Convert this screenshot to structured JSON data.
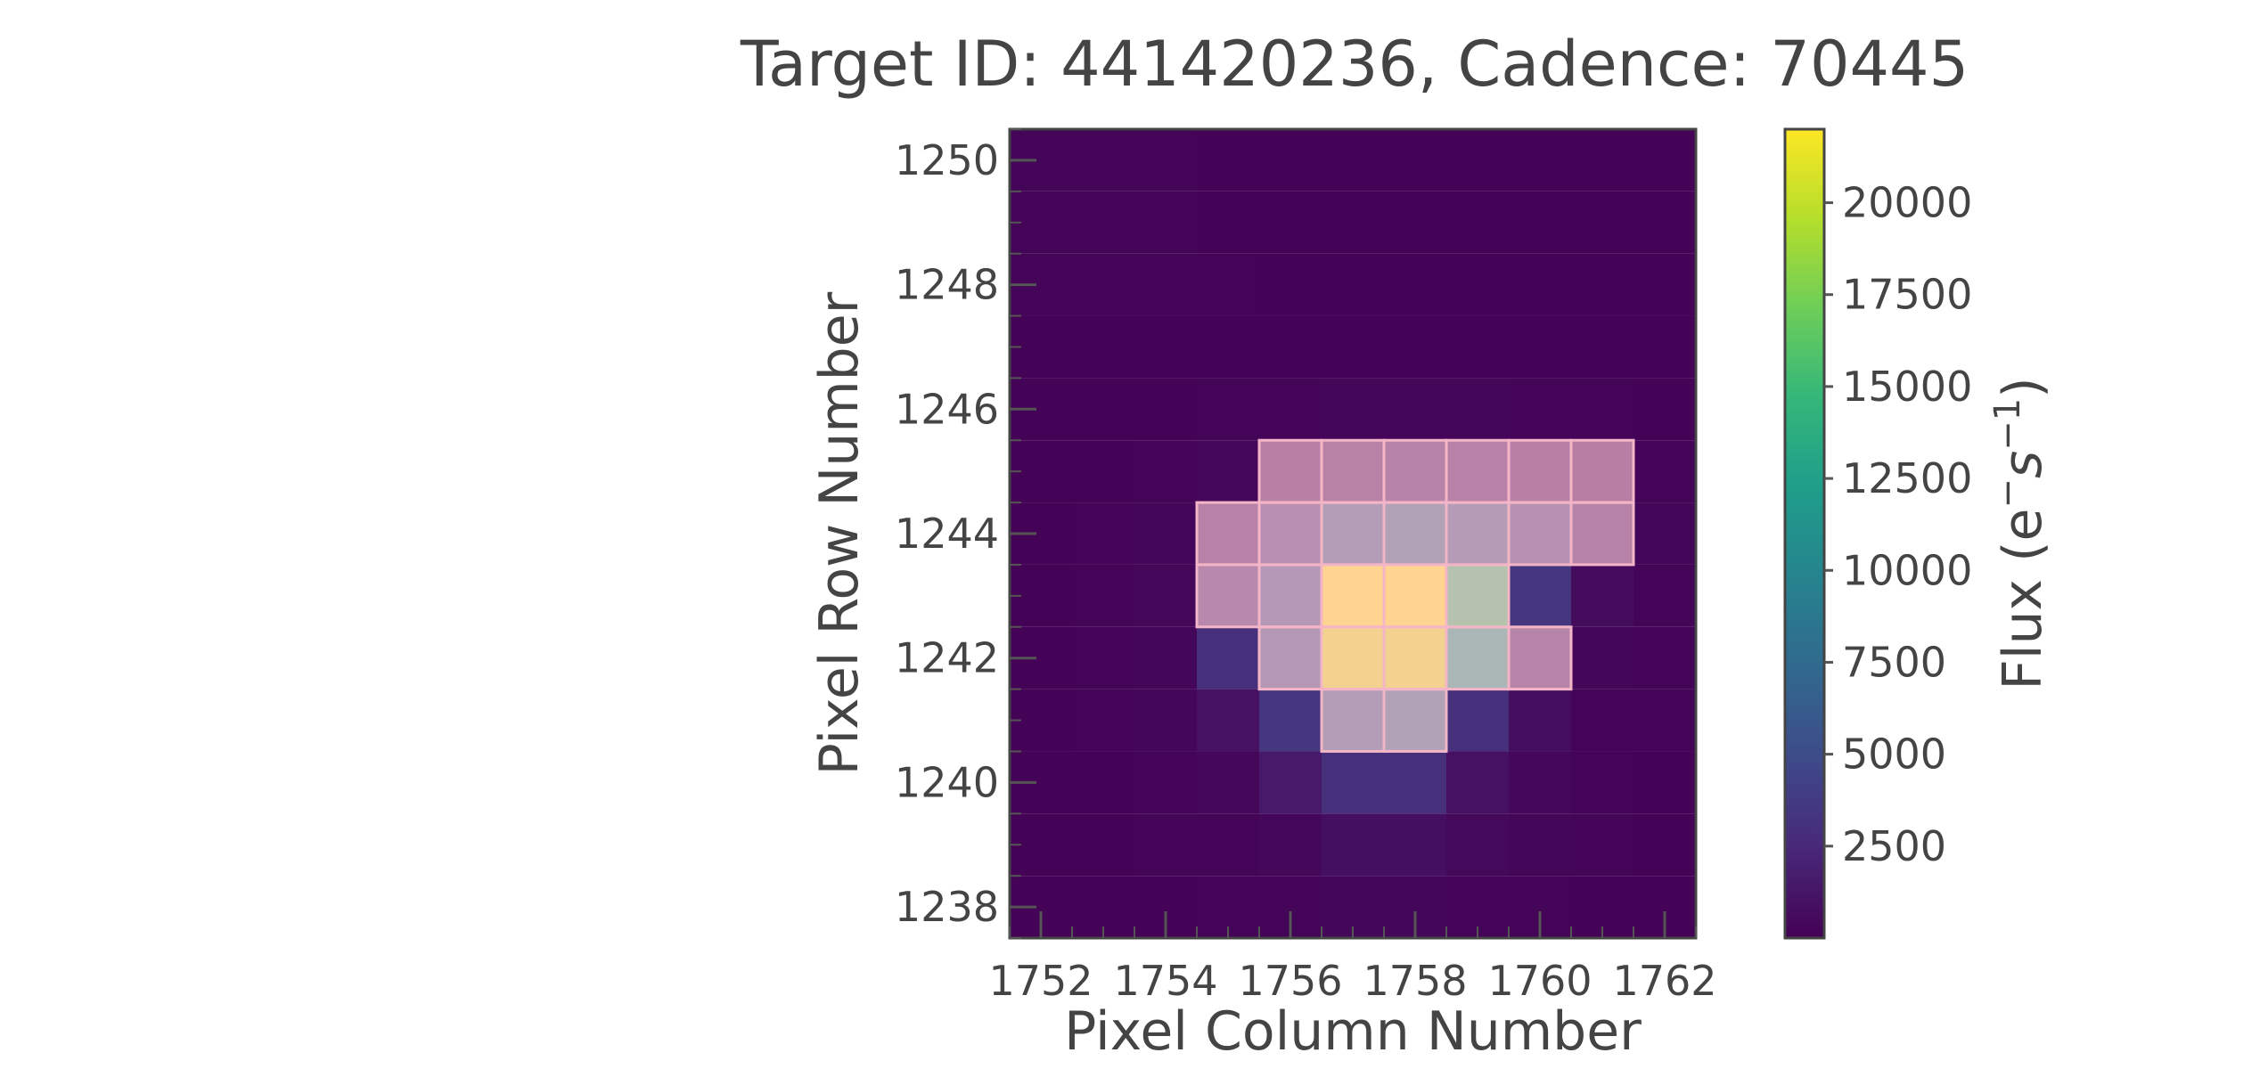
{
  "chart_data": {
    "type": "heatmap",
    "title": "Target ID: 441420236, Cadence: 70445",
    "xlabel": "Pixel Column Number",
    "ylabel": "Pixel Row Number",
    "colorbar_label": "Flux (e",
    "colorbar_label_sup1": "−",
    "colorbar_label_mid": "s",
    "colorbar_label_sup2": "−1",
    "colorbar_label_end": ")",
    "colormap": "viridis",
    "xlim": [
      1751.5,
      1762.5
    ],
    "ylim": [
      1237.5,
      1250.5
    ],
    "x_start": 1752,
    "y_start": 1238,
    "x_ticks": [
      1752,
      1754,
      1756,
      1758,
      1760,
      1762
    ],
    "y_ticks": [
      1238,
      1240,
      1242,
      1244,
      1246,
      1248,
      1250
    ],
    "color_range": [
      0,
      22000
    ],
    "colorbar_ticks": [
      2500,
      5000,
      7500,
      10000,
      12500,
      15000,
      17500,
      20000
    ],
    "grid": false,
    "flux": [
      [
        200,
        250,
        250,
        150,
        150,
        150,
        150,
        150,
        150,
        150,
        150
      ],
      [
        200,
        200,
        200,
        150,
        150,
        150,
        150,
        150,
        150,
        150,
        150
      ],
      [
        200,
        250,
        250,
        200,
        150,
        150,
        150,
        150,
        150,
        150,
        150
      ],
      [
        150,
        150,
        150,
        150,
        150,
        150,
        150,
        150,
        150,
        150,
        150
      ],
      [
        150,
        150,
        150,
        200,
        250,
        300,
        300,
        300,
        250,
        200,
        150
      ],
      [
        150,
        150,
        250,
        400,
        700,
        1000,
        1100,
        900,
        600,
        300,
        200
      ],
      [
        150,
        200,
        300,
        900,
        3000,
        6000,
        7000,
        5500,
        3500,
        1200,
        300
      ],
      [
        150,
        200,
        400,
        2000,
        5000,
        22000,
        22000,
        15000,
        3500,
        700,
        250
      ],
      [
        150,
        200,
        300,
        3000,
        5000,
        21000,
        21000,
        12000,
        1500,
        300,
        200
      ],
      [
        150,
        200,
        300,
        1000,
        3500,
        6000,
        7000,
        3000,
        800,
        250,
        200
      ],
      [
        150,
        150,
        250,
        400,
        1500,
        3000,
        3000,
        1000,
        400,
        200,
        150
      ],
      [
        150,
        150,
        200,
        250,
        400,
        900,
        900,
        500,
        300,
        200,
        150
      ],
      [
        150,
        150,
        150,
        200,
        250,
        300,
        300,
        250,
        200,
        150,
        150
      ]
    ],
    "aperture_mask": [
      [
        0,
        0,
        0,
        0,
        0,
        0,
        0,
        0,
        0,
        0,
        0
      ],
      [
        0,
        0,
        0,
        0,
        0,
        0,
        0,
        0,
        0,
        0,
        0
      ],
      [
        0,
        0,
        0,
        0,
        0,
        0,
        0,
        0,
        0,
        0,
        0
      ],
      [
        0,
        0,
        0,
        0,
        0,
        0,
        0,
        0,
        0,
        0,
        0
      ],
      [
        0,
        0,
        0,
        0,
        0,
        0,
        0,
        0,
        0,
        0,
        0
      ],
      [
        0,
        0,
        0,
        0,
        1,
        1,
        1,
        1,
        1,
        1,
        0
      ],
      [
        0,
        0,
        0,
        1,
        1,
        1,
        1,
        1,
        1,
        1,
        0
      ],
      [
        0,
        0,
        0,
        1,
        1,
        1,
        1,
        1,
        0,
        0,
        0
      ],
      [
        0,
        0,
        0,
        0,
        1,
        1,
        1,
        1,
        1,
        0,
        0
      ],
      [
        0,
        0,
        0,
        0,
        0,
        1,
        1,
        0,
        0,
        0,
        0
      ],
      [
        0,
        0,
        0,
        0,
        0,
        0,
        0,
        0,
        0,
        0,
        0
      ],
      [
        0,
        0,
        0,
        0,
        0,
        0,
        0,
        0,
        0,
        0,
        0
      ],
      [
        0,
        0,
        0,
        0,
        0,
        0,
        0,
        0,
        0,
        0,
        0
      ]
    ]
  }
}
